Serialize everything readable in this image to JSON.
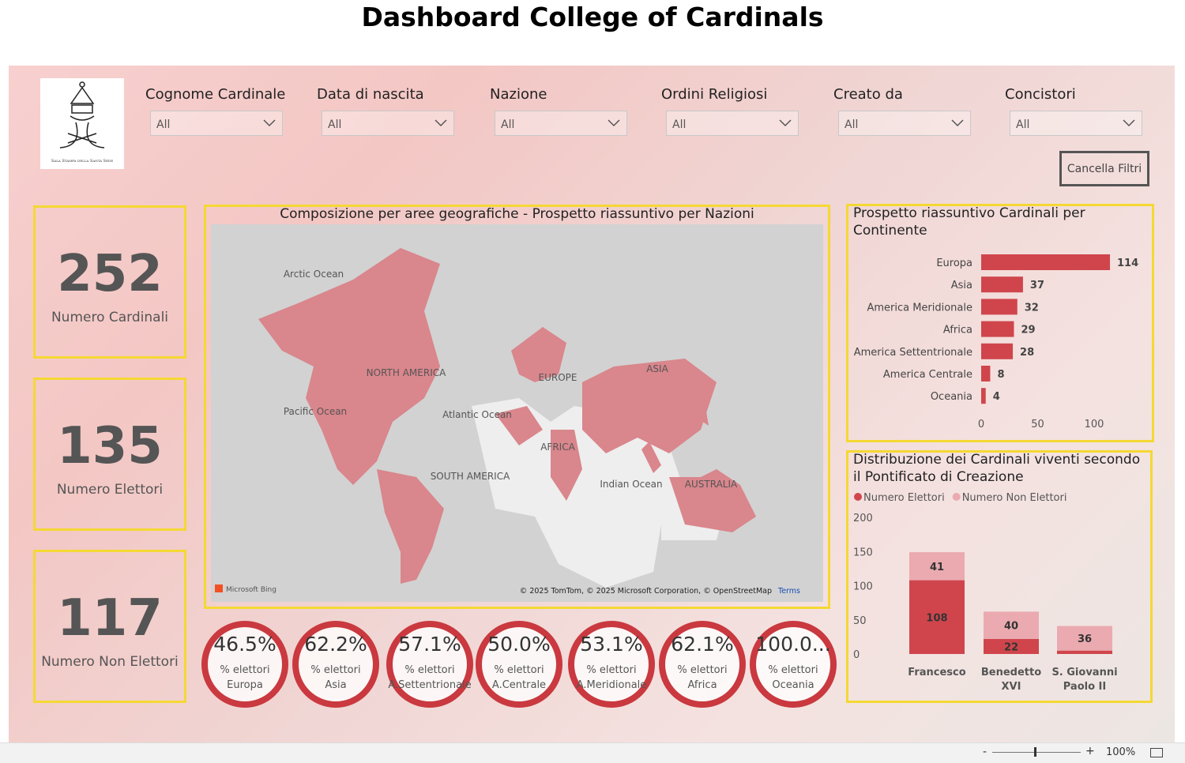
{
  "title": "Dashboard College of Cardinals",
  "logo_caption": "Sala Stampa della Santa Sede",
  "filters": [
    {
      "label": "Cognome Cardinale",
      "value": "All"
    },
    {
      "label": "Data di nascita",
      "value": "All"
    },
    {
      "label": "Nazione",
      "value": "All"
    },
    {
      "label": "Ordini Religiosi",
      "value": "All"
    },
    {
      "label": "Creato da",
      "value": "All"
    },
    {
      "label": "Concistori",
      "value": "All"
    }
  ],
  "clear_button": "Cancella Filtri",
  "kpis": [
    {
      "value": 252,
      "label": "Numero Cardinali"
    },
    {
      "value": 135,
      "label": "Numero Elettori"
    },
    {
      "value": 117,
      "label": "Numero Non Elettori"
    }
  ],
  "map": {
    "title": "Composizione per aree geografiche - Prospetto riassuntivo per Nazioni",
    "labels": [
      "Arctic Ocean",
      "Pacific Ocean",
      "NORTH AMERICA",
      "EUROPE",
      "ASIA",
      "Atlantic Ocean",
      "AFRICA",
      "SOUTH AMERICA",
      "Indian Ocean",
      "AUSTRALIA"
    ],
    "brand": "Microsoft Bing",
    "attribution": "© 2025 TomTom, © 2025 Microsoft Corporation, © OpenStreetMap",
    "terms": "Terms"
  },
  "gauges": [
    {
      "value": 46.5,
      "value_label": "46.5%",
      "caption": "% elettori",
      "region": "Europa"
    },
    {
      "value": 62.2,
      "value_label": "62.2%",
      "caption": "% elettori",
      "region": "Asia"
    },
    {
      "value": 57.1,
      "value_label": "57.1%",
      "caption": "% elettori",
      "region": "A.Settentrionale"
    },
    {
      "value": 50.0,
      "value_label": "50.0%",
      "caption": "% elettori",
      "region": "A.Centrale"
    },
    {
      "value": 53.1,
      "value_label": "53.1%",
      "caption": "% elettori",
      "region": "A.Meridionale"
    },
    {
      "value": 62.1,
      "value_label": "62.1%",
      "caption": "% elettori",
      "region": "Africa"
    },
    {
      "value": 100.0,
      "value_label": "100.0...",
      "caption": "% elettori",
      "region": "Oceania"
    }
  ],
  "continent_chart": {
    "type": "bar",
    "orientation": "horizontal",
    "title": "Prospetto riassuntivo Cardinali per Continente",
    "categories": [
      "Europa",
      "Asia",
      "America Meridionale",
      "Africa",
      "America Settentrionale",
      "America Centrale",
      "Oceania"
    ],
    "values": [
      114,
      37,
      32,
      29,
      28,
      8,
      4
    ],
    "color": "#d0454c",
    "xlim": [
      0,
      120
    ],
    "xticks": [
      0,
      50,
      100
    ]
  },
  "pontificate_chart": {
    "type": "stacked_bar",
    "title": "Distribuzione dei Cardinali viventi secondo il Pontificato di Creazione",
    "categories": [
      "Francesco",
      "Benedetto XVI",
      "S. Giovanni Paolo II"
    ],
    "series": [
      {
        "name": "Numero Elettori",
        "color": "#d0454c",
        "values": [
          108,
          22,
          5
        ],
        "value_labels": [
          "108",
          "22",
          null
        ]
      },
      {
        "name": "Numero Non Elettori",
        "color": "#eaaab0",
        "values": [
          41,
          40,
          36
        ]
      }
    ],
    "ylim": [
      0,
      200
    ],
    "yticks": [
      0,
      50,
      100,
      150,
      200
    ],
    "legend": "top-left"
  },
  "zoom": "100%"
}
